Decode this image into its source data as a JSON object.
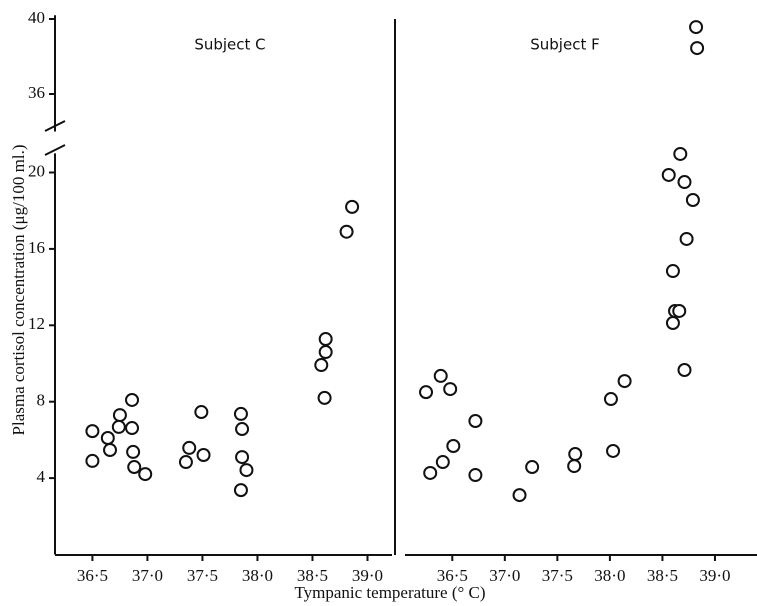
{
  "chart_data": [
    {
      "type": "scatter",
      "title": "Subject C",
      "color": "#111111",
      "marker": "open-circle",
      "xlabel": "Tympanic temperature (° C)",
      "ylabel": "Plasma cortisol concentration (μg/100 ml.)",
      "x": [
        36.5,
        36.5,
        36.64,
        36.66,
        36.75,
        36.74,
        36.86,
        36.86,
        36.87,
        36.88,
        36.98,
        37.35,
        37.38,
        37.49,
        37.51,
        37.9,
        37.85,
        37.86,
        37.86,
        37.85,
        38.58,
        38.62,
        38.62,
        38.61,
        38.81,
        38.86
      ],
      "values": [
        6.46,
        4.9,
        6.1,
        5.47,
        7.3,
        6.68,
        8.09,
        6.62,
        5.37,
        4.58,
        4.21,
        4.84,
        5.58,
        7.46,
        5.21,
        4.42,
        7.36,
        6.57,
        5.1,
        3.37,
        9.92,
        10.6,
        11.28,
        8.2,
        16.9,
        18.2
      ],
      "xlim": [
        36.16,
        39.25
      ],
      "xticks": [
        {
          "value": 36.5,
          "label": "36·5"
        },
        {
          "value": 37.0,
          "label": "37·0"
        },
        {
          "value": 37.5,
          "label": "37·5"
        },
        {
          "value": 38.0,
          "label": "38·0"
        },
        {
          "value": 38.5,
          "label": "38·5"
        },
        {
          "value": 39.0,
          "label": "39·0"
        }
      ],
      "ylim": [
        0,
        41
      ],
      "ybreak": [
        21,
        34
      ],
      "yticks": [
        4,
        8,
        12,
        16,
        20,
        36,
        40
      ]
    },
    {
      "type": "scatter",
      "title": "Subject F",
      "color": "#111111",
      "marker": "open-circle",
      "x": [
        36.25,
        36.29,
        36.39,
        36.41,
        36.48,
        36.51,
        36.72,
        36.72,
        37.14,
        37.26,
        37.67,
        37.66,
        38.01,
        38.03,
        38.14,
        38.6,
        38.62,
        38.6,
        38.56,
        38.67,
        38.71,
        38.79,
        38.73,
        38.66,
        38.71,
        38.82,
        38.83
      ],
      "values": [
        8.5,
        4.27,
        9.35,
        4.84,
        8.66,
        5.68,
        6.99,
        4.16,
        3.11,
        4.58,
        5.26,
        4.63,
        8.14,
        5.42,
        9.08,
        14.84,
        12.75,
        12.12,
        19.87,
        20.97,
        19.5,
        18.56,
        16.52,
        12.75,
        9.66,
        39.57,
        38.45
      ],
      "xlim": [
        36.05,
        39.4
      ],
      "xticks": [
        {
          "value": 36.5,
          "label": "36·5"
        },
        {
          "value": 37.0,
          "label": "37·0"
        },
        {
          "value": 37.5,
          "label": "37·5"
        },
        {
          "value": 38.0,
          "label": "38·0"
        },
        {
          "value": 38.5,
          "label": "38·5"
        },
        {
          "value": 39.0,
          "label": "39·0"
        }
      ]
    }
  ]
}
